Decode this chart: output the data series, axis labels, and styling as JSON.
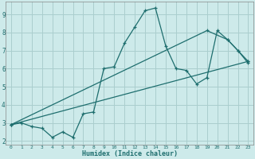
{
  "xlabel": "Humidex (Indice chaleur)",
  "bg_color": "#cdeaea",
  "grid_color": "#aacece",
  "line_color": "#1e6e6e",
  "xlim": [
    -0.5,
    23.5
  ],
  "ylim": [
    1.8,
    9.7
  ],
  "yticks": [
    2,
    3,
    4,
    5,
    6,
    7,
    8,
    9
  ],
  "xticks": [
    0,
    1,
    2,
    3,
    4,
    5,
    6,
    7,
    8,
    9,
    10,
    11,
    12,
    13,
    14,
    15,
    16,
    17,
    18,
    19,
    20,
    21,
    22,
    23
  ],
  "line1_x": [
    0,
    1,
    2,
    3,
    4,
    5,
    6,
    7,
    8,
    9,
    10,
    11,
    12,
    13,
    14,
    15,
    16,
    17,
    18,
    19,
    20,
    21,
    22,
    23
  ],
  "line1_y": [
    2.9,
    3.0,
    2.8,
    2.7,
    2.2,
    2.5,
    2.2,
    3.5,
    3.6,
    6.0,
    6.1,
    7.4,
    8.3,
    9.2,
    9.35,
    7.25,
    6.0,
    5.9,
    5.15,
    5.5,
    8.1,
    7.6,
    7.0,
    6.3
  ],
  "line2_x": [
    0,
    23
  ],
  "line2_y": [
    2.9,
    6.4
  ],
  "line3_x": [
    0,
    19,
    21,
    22,
    23
  ],
  "line3_y": [
    2.9,
    8.1,
    7.6,
    7.0,
    6.4
  ]
}
